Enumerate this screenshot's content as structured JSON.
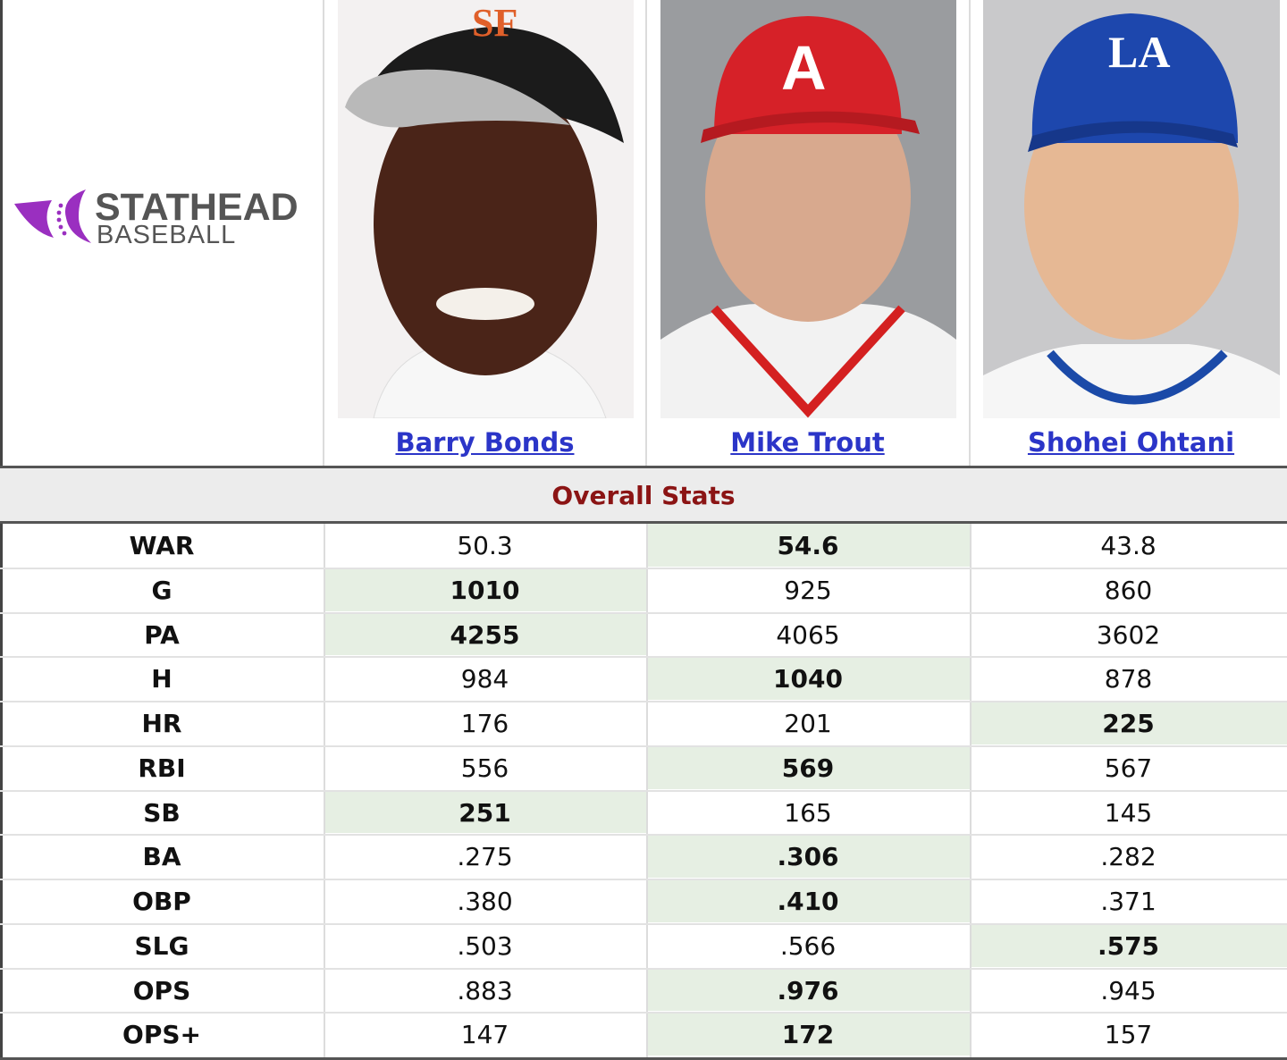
{
  "header": {
    "logo": {
      "title": "STATHEAD",
      "subtitle": "BASEBALL"
    },
    "players": [
      "Barry Bonds",
      "Mike Trout",
      "Shohei Ohtani"
    ]
  },
  "table": {
    "section": "Overall Stats",
    "rows": [
      {
        "stat": "WAR",
        "values": [
          "50.3",
          "54.6",
          "43.8"
        ],
        "leader": 1
      },
      {
        "stat": "G",
        "values": [
          "1010",
          "925",
          "860"
        ],
        "leader": 0
      },
      {
        "stat": "PA",
        "values": [
          "4255",
          "4065",
          "3602"
        ],
        "leader": 0
      },
      {
        "stat": "H",
        "values": [
          "984",
          "1040",
          "878"
        ],
        "leader": 1
      },
      {
        "stat": "HR",
        "values": [
          "176",
          "201",
          "225"
        ],
        "leader": 2
      },
      {
        "stat": "RBI",
        "values": [
          "556",
          "569",
          "567"
        ],
        "leader": 1
      },
      {
        "stat": "SB",
        "values": [
          "251",
          "165",
          "145"
        ],
        "leader": 0
      },
      {
        "stat": "BA",
        "values": [
          ".275",
          ".306",
          ".282"
        ],
        "leader": 1
      },
      {
        "stat": "OBP",
        "values": [
          ".380",
          ".410",
          ".371"
        ],
        "leader": 1
      },
      {
        "stat": "SLG",
        "values": [
          ".503",
          ".566",
          ".575"
        ],
        "leader": 2
      },
      {
        "stat": "OPS",
        "values": [
          ".883",
          ".976",
          ".945"
        ],
        "leader": 1
      },
      {
        "stat": "OPS+",
        "values": [
          "147",
          "172",
          "157"
        ],
        "leader": 1
      }
    ]
  }
}
